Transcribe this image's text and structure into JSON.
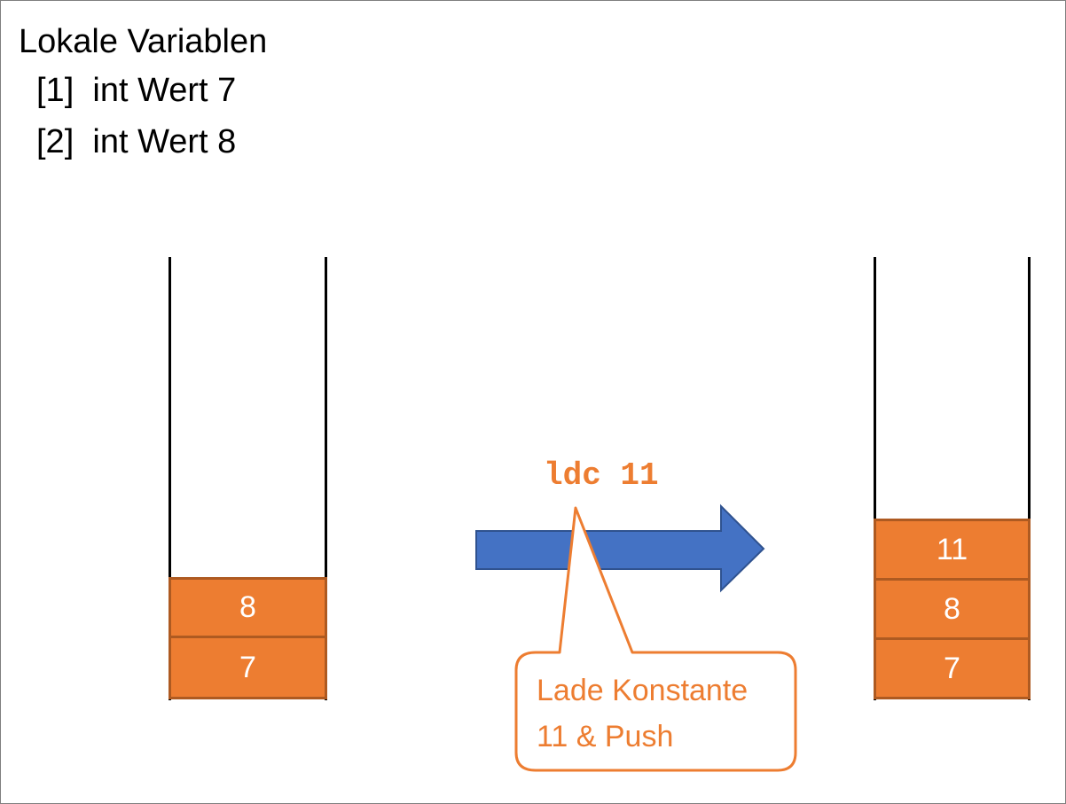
{
  "locals": {
    "title": "Lokale Variablen",
    "vars": [
      {
        "index": "[1]",
        "text": "int Wert 7"
      },
      {
        "index": "[2]",
        "text": "int Wert 8"
      }
    ]
  },
  "stack_before": [
    "8",
    "7"
  ],
  "stack_after": [
    "11",
    "8",
    "7"
  ],
  "instruction": "ldc 11",
  "callout": {
    "line1": "Lade Konstante",
    "line2": "11 & Push"
  },
  "colors": {
    "cell_fill": "#ed7d31",
    "cell_border": "#ae5a21",
    "arrow_fill": "#4472c4",
    "arrow_border": "#2f528f",
    "instruction_text": "#ed7d31"
  }
}
